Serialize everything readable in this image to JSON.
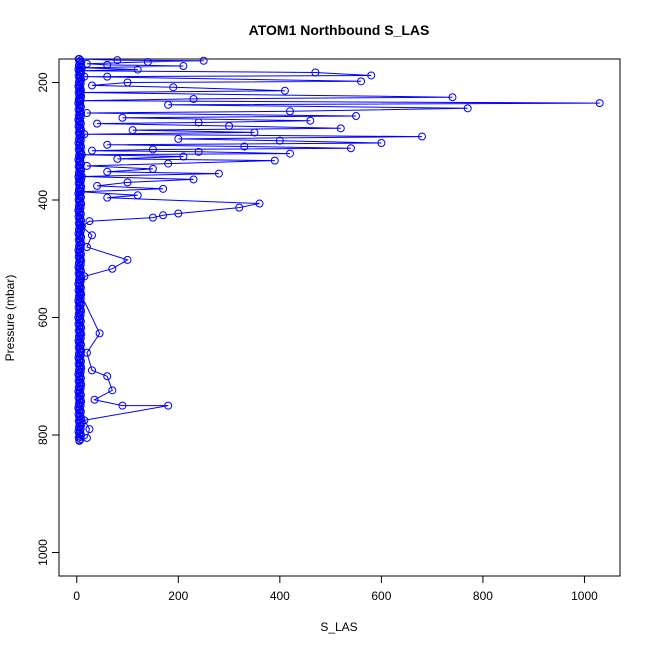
{
  "chart_data": {
    "type": "line",
    "title": "ATOM1 Northbound S_LAS",
    "xlabel": "S_LAS",
    "ylabel": "Pressure (mbar)",
    "xlim": [
      -35,
      1070
    ],
    "ylim": [
      1040,
      160
    ],
    "y_reversed": true,
    "x_ticks": [
      0,
      200,
      400,
      600,
      800,
      1000
    ],
    "y_ticks": [
      200,
      400,
      600,
      800,
      1000
    ],
    "grid": false,
    "legend": "none",
    "series": [
      {
        "color": "#0000ff",
        "marker": "open-circle",
        "points": [
          [
            5,
            160
          ],
          [
            80,
            162
          ],
          [
            250,
            163
          ],
          [
            140,
            165
          ],
          [
            20,
            168
          ],
          [
            60,
            170
          ],
          [
            210,
            172
          ],
          [
            10,
            175
          ],
          [
            120,
            178
          ],
          [
            8,
            180
          ],
          [
            470,
            183
          ],
          [
            580,
            188
          ],
          [
            60,
            190
          ],
          [
            15,
            190
          ],
          [
            560,
            198
          ],
          [
            100,
            200
          ],
          [
            30,
            205
          ],
          [
            190,
            208
          ],
          [
            410,
            214
          ],
          [
            8,
            217
          ],
          [
            740,
            225
          ],
          [
            230,
            228
          ],
          [
            5,
            231
          ],
          [
            1030,
            235
          ],
          [
            180,
            238
          ],
          [
            770,
            244
          ],
          [
            420,
            249
          ],
          [
            20,
            252
          ],
          [
            550,
            257
          ],
          [
            90,
            260
          ],
          [
            460,
            265
          ],
          [
            240,
            268
          ],
          [
            40,
            270
          ],
          [
            300,
            274
          ],
          [
            520,
            278
          ],
          [
            110,
            281
          ],
          [
            350,
            285
          ],
          [
            15,
            288
          ],
          [
            680,
            292
          ],
          [
            200,
            296
          ],
          [
            400,
            299
          ],
          [
            600,
            303
          ],
          [
            60,
            306
          ],
          [
            330,
            309
          ],
          [
            540,
            312
          ],
          [
            150,
            314
          ],
          [
            30,
            316
          ],
          [
            240,
            318
          ],
          [
            420,
            321
          ],
          [
            10,
            323
          ],
          [
            210,
            326
          ],
          [
            80,
            330
          ],
          [
            390,
            333
          ],
          [
            180,
            338
          ],
          [
            20,
            342
          ],
          [
            150,
            347
          ],
          [
            60,
            352
          ],
          [
            280,
            355
          ],
          [
            10,
            360
          ],
          [
            230,
            365
          ],
          [
            100,
            370
          ],
          [
            40,
            376
          ],
          [
            170,
            381
          ],
          [
            8,
            386
          ],
          [
            120,
            392
          ],
          [
            60,
            396
          ],
          [
            360,
            406
          ],
          [
            320,
            413
          ],
          [
            200,
            423
          ],
          [
            170,
            426
          ],
          [
            150,
            430
          ],
          [
            25,
            436
          ],
          [
            10,
            445
          ],
          [
            30,
            460
          ],
          [
            20,
            480
          ],
          [
            100,
            502
          ],
          [
            70,
            517
          ],
          [
            15,
            530
          ],
          [
            8,
            560
          ],
          [
            45,
            627
          ],
          [
            20,
            660
          ],
          [
            30,
            690
          ],
          [
            60,
            700
          ],
          [
            70,
            724
          ],
          [
            35,
            740
          ],
          [
            90,
            750
          ],
          [
            180,
            750
          ],
          [
            15,
            775
          ],
          [
            25,
            790
          ],
          [
            20,
            805
          ],
          [
            5,
            810
          ]
        ]
      }
    ]
  }
}
